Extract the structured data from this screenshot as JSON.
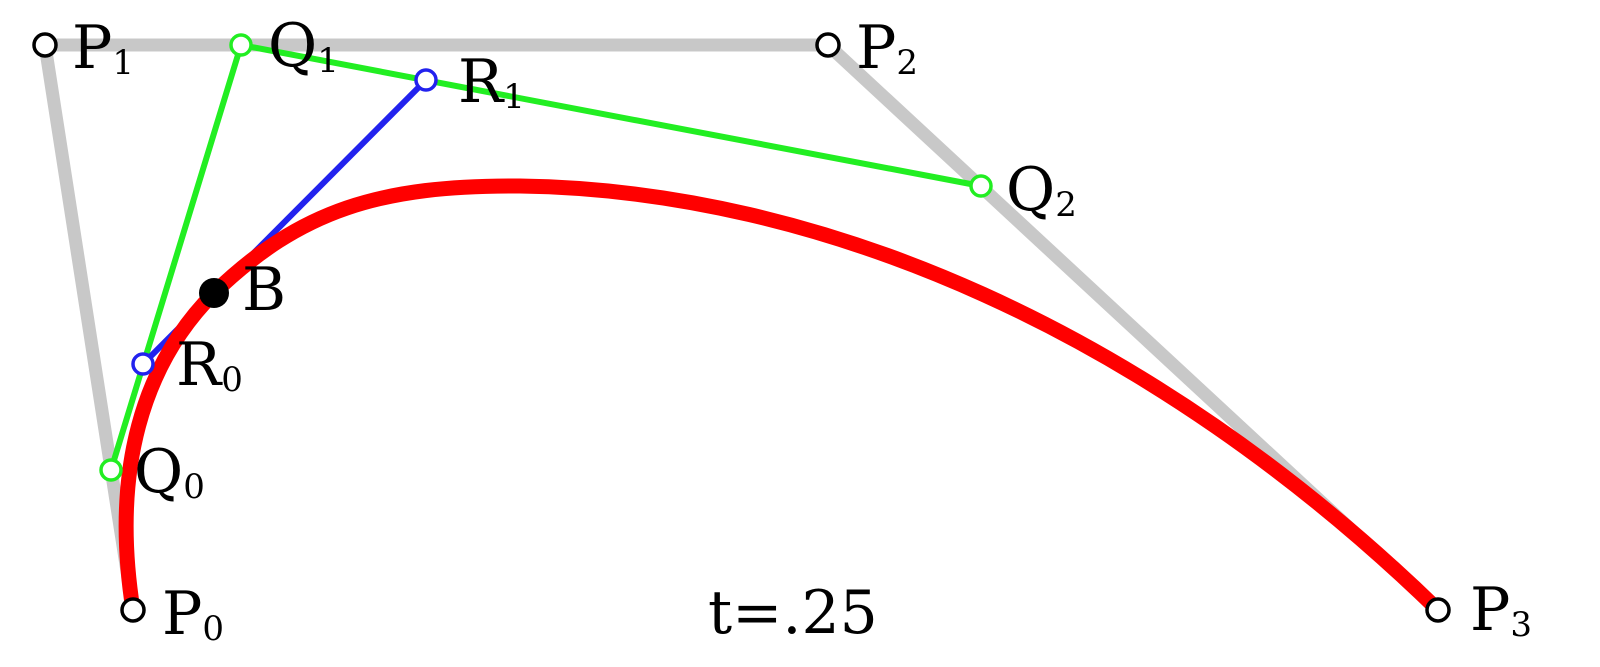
{
  "colors": {
    "background": "#ffffff",
    "control_polygon": "#c8c8c8",
    "first_level": "#22ee22",
    "second_level": "#2222ee",
    "curve": "#ff0000",
    "point": "#000000"
  },
  "parameter": {
    "t_label": "t=.25"
  },
  "labels": {
    "P0": {
      "base": "P",
      "sub": "0"
    },
    "P1": {
      "base": "P",
      "sub": "1"
    },
    "P2": {
      "base": "P",
      "sub": "2"
    },
    "P3": {
      "base": "P",
      "sub": "3"
    },
    "Q0": {
      "base": "Q",
      "sub": "0"
    },
    "Q1": {
      "base": "Q",
      "sub": "1"
    },
    "Q2": {
      "base": "Q",
      "sub": "2"
    },
    "R0": {
      "base": "R",
      "sub": "0"
    },
    "R1": {
      "base": "R",
      "sub": "1"
    },
    "B": {
      "base": "B"
    }
  }
}
